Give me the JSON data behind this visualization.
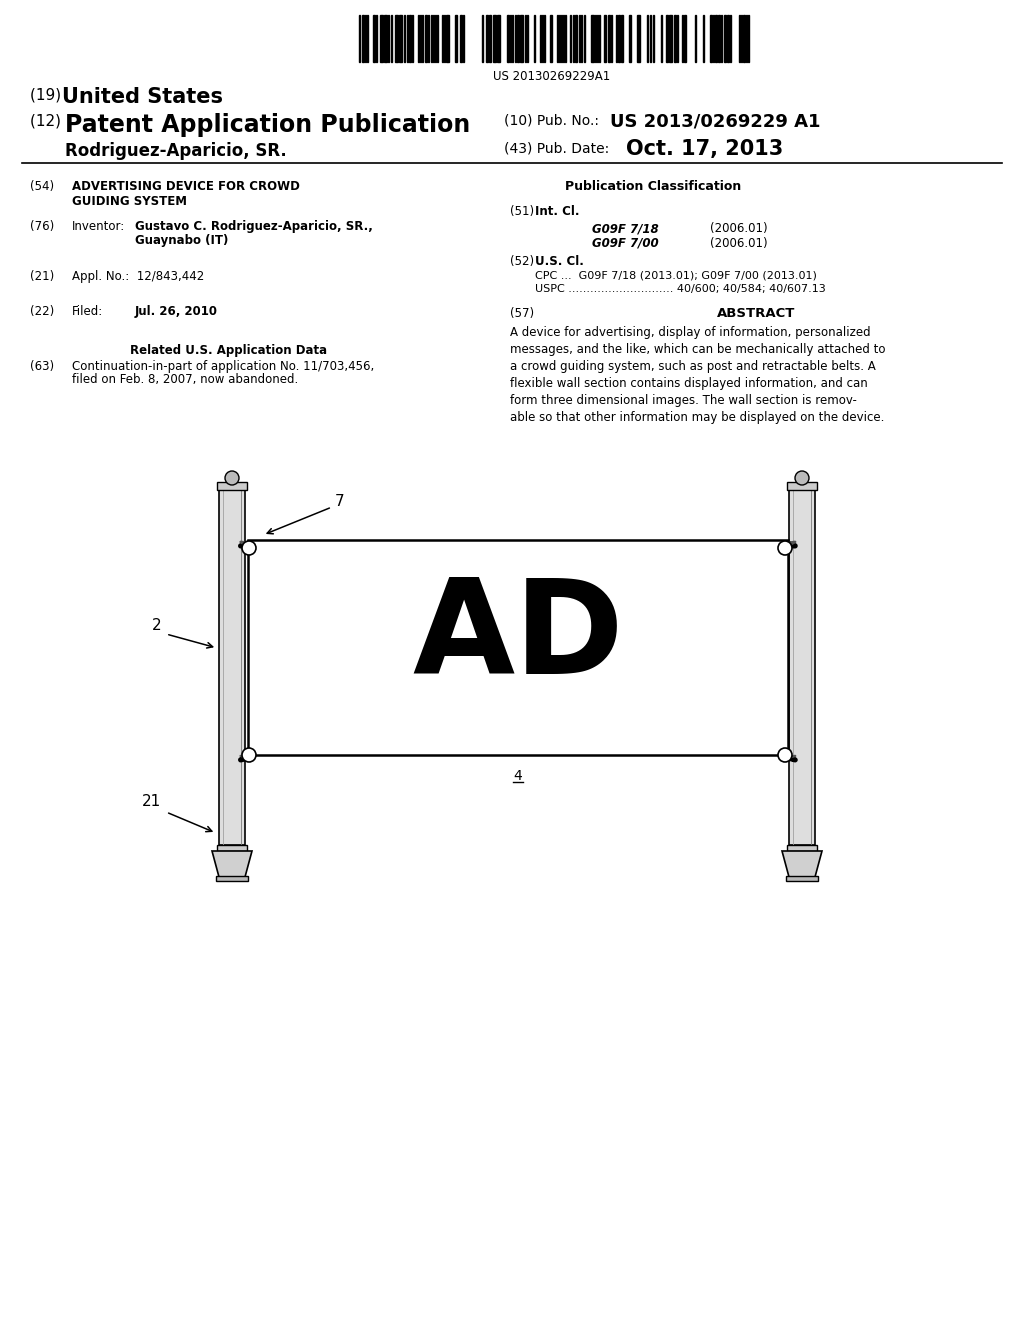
{
  "bg_color": "#ffffff",
  "barcode_text": "US 20130269229A1",
  "title19_prefix": "(19) ",
  "title19_main": "United States",
  "title12_prefix": "(12) ",
  "title12_main": "Patent Application Publication",
  "pub_no_label": "(10) Pub. No.:",
  "pub_no_value": "US 2013/0269229 A1",
  "inventor_row": "Rodriguez-Aparicio, SR.",
  "pub_date_label": "(43) Pub. Date:",
  "pub_date_value": "Oct. 17, 2013",
  "s54_num": "(54)",
  "s54_text": "ADVERTISING DEVICE FOR CROWD\nGUIDING SYSTEM",
  "s76_num": "(76)",
  "s76_key": "Inventor:",
  "s76_val": "Gustavo C. Rodriguez-Aparicio, SR.,",
  "s76_val2": "Guaynabo (IT)",
  "s21_num": "(21)",
  "s21_val": "Appl. No.:  12/843,442",
  "s22_num": "(22)",
  "s22_key": "Filed:",
  "s22_val": "Jul. 26, 2010",
  "related_title": "Related U.S. Application Data",
  "s63_num": "(63)",
  "s63_val": "Continuation-in-part of application No. 11/703,456,",
  "s63_val2": "filed on Feb. 8, 2007, now abandoned.",
  "pub_class_title": "Publication Classification",
  "s51_num": "(51)",
  "s51_key": "Int. Cl.",
  "s51_g1": "G09F 7/18",
  "s51_y1": "(2006.01)",
  "s51_g2": "G09F 7/00",
  "s51_y2": "(2006.01)",
  "s52_num": "(52)",
  "s52_key": "U.S. Cl.",
  "s52_cpc": "CPC ...  G09F 7/18 (2013.01); G09F 7/00 (2013.01)",
  "s52_uspc": "USPC ............................. 40/600; 40/584; 40/607.13",
  "s57_num": "(57)",
  "s57_title": "ABSTRACT",
  "abstract": "A device for advertising, display of information, personalized\nmessages, and the like, which can be mechanically attached to\na crowd guiding system, such as post and retractable belts. A\nflexible wall section contains displayed information, and can\nform three dimensional images. The wall section is remov-\nable so that other information may be displayed on the device.",
  "lbl7": "7",
  "lbl2": "2",
  "lbl4": "4",
  "lbl21": "21",
  "ad_text": "AD"
}
